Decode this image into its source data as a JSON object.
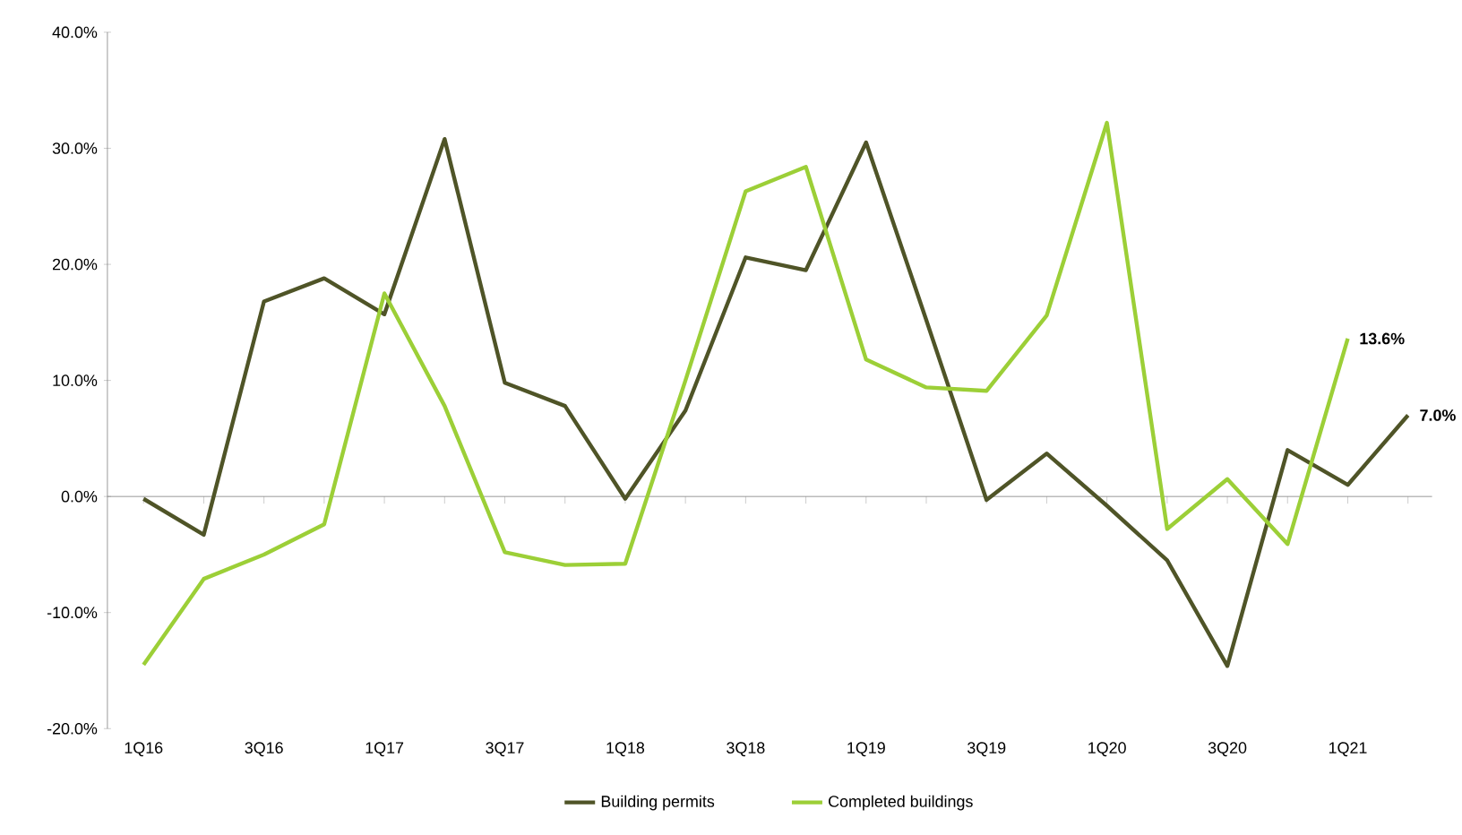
{
  "chart_data": {
    "type": "line",
    "categories": [
      "1Q16",
      null,
      "3Q16",
      null,
      "1Q17",
      null,
      "3Q17",
      null,
      "1Q18",
      null,
      "3Q18",
      null,
      "1Q19",
      null,
      "3Q19",
      null,
      "1Q20",
      null,
      "3Q20",
      null,
      "1Q21",
      null
    ],
    "ylim": [
      -20,
      40
    ],
    "yticks": [
      {
        "value": -20,
        "label": "-20.0%"
      },
      {
        "value": -10,
        "label": "-10.0%"
      },
      {
        "value": 0,
        "label": "0.0%"
      },
      {
        "value": 10,
        "label": "10.0%"
      },
      {
        "value": 20,
        "label": "20.0%"
      },
      {
        "value": 30,
        "label": "30.0%"
      },
      {
        "value": 40,
        "label": "40.0%"
      }
    ],
    "legend": "bottom",
    "marker": "none",
    "line_style": "solid",
    "series": [
      {
        "name": "Building permits",
        "color": "#4f5427",
        "values": [
          -0.2,
          -3.3,
          16.8,
          18.8,
          15.7,
          30.8,
          9.8,
          7.8,
          -0.2,
          7.4,
          20.6,
          19.5,
          30.5,
          15.2,
          -0.3,
          3.7,
          -0.8,
          -5.5,
          -14.6,
          4.0,
          1.0,
          7.0
        ],
        "value_labels": [
          null,
          null,
          null,
          null,
          null,
          null,
          null,
          null,
          null,
          null,
          null,
          null,
          null,
          null,
          null,
          null,
          null,
          null,
          null,
          null,
          null,
          "7.0%"
        ]
      },
      {
        "name": "Completed buildings",
        "color": "#9ccf37",
        "values": [
          -14.5,
          -7.1,
          -5.0,
          -2.4,
          17.5,
          7.8,
          -4.8,
          -5.9,
          -5.8,
          10.0,
          26.3,
          28.4,
          11.8,
          9.4,
          9.1,
          15.6,
          32.2,
          -2.8,
          1.5,
          -4.1,
          13.6,
          null
        ],
        "value_labels": [
          null,
          null,
          null,
          null,
          null,
          null,
          null,
          null,
          null,
          null,
          null,
          null,
          null,
          null,
          null,
          null,
          null,
          null,
          null,
          null,
          "13.6%",
          null
        ]
      }
    ]
  }
}
